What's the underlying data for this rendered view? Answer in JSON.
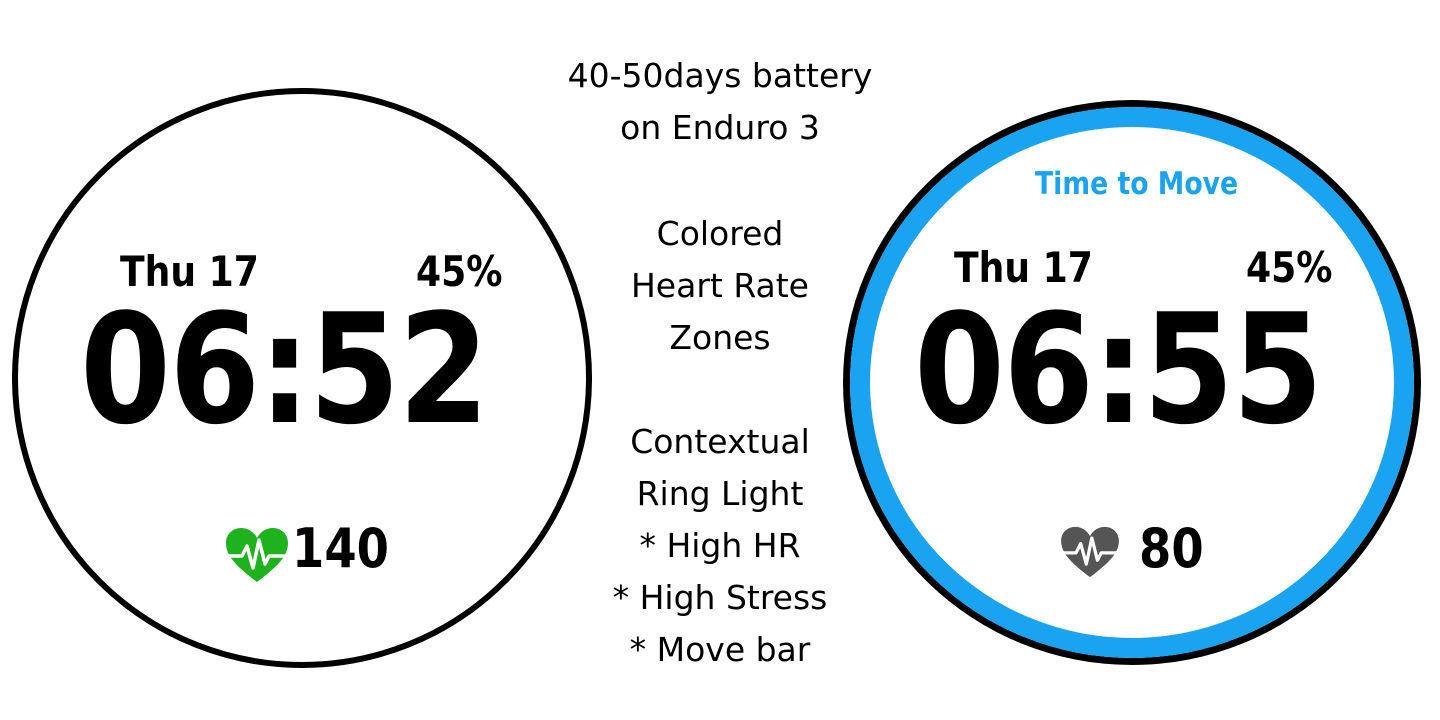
{
  "caption": {
    "battery": [
      "40-50days battery",
      "on Enduro 3"
    ],
    "heart_zones": [
      "Colored",
      "Heart Rate",
      "Zones"
    ],
    "ring_light": [
      "Contextual",
      "Ring Light",
      "* High HR",
      "* High Stress",
      "* Move bar"
    ]
  },
  "watch_left": {
    "date": "Thu 17",
    "battery": "45%",
    "time": "06:52",
    "heart_rate": "140",
    "heart_icon": "heart-pulse-icon",
    "heart_color": "#1fb21f",
    "ring_color": "#000000"
  },
  "watch_right": {
    "top_label": "Time to Move",
    "date": "Thu 17",
    "battery": "45%",
    "time": "06:55",
    "heart_rate": "80",
    "heart_icon": "heart-pulse-icon",
    "heart_color": "#555555",
    "ring_color": "#1aa3f0"
  }
}
